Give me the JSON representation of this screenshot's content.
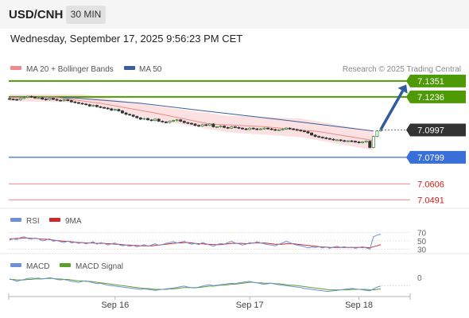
{
  "header": {
    "symbol": "USD/CNH",
    "timeframe": "30 MIN"
  },
  "datetime": "Wednesday, September 17, 2025 9:56:23 PM CET",
  "colors": {
    "ma20": "#f08a8a",
    "ma50": "#3a5f9c",
    "bollinger_fill": "#fbe1e1",
    "resistance": "#4e9a06",
    "support": "#3b6fd8",
    "pivot": "#333333",
    "weak_level": "#f0a0a0",
    "weak_level_text": "#d41c1c",
    "rsi": "#6f8fd8",
    "rsi_ma": "#cc2a2a",
    "macd": "#6f8fd8",
    "macd_signal": "#5aa02c",
    "arrow": "#2f5c9a"
  },
  "chart_data": [
    {
      "type": "candlestick",
      "legend": [
        {
          "label": "MA 20 + Bollinger Bands",
          "color": "#f08a8a"
        },
        {
          "label": "MA 50",
          "color": "#3a5f9c"
        }
      ],
      "legend_position": "top-left",
      "copyright": "Research © 2025 Trading Central",
      "ylim": [
        7.043,
        7.1385
      ],
      "x_range": [
        0,
        104
      ],
      "x_ticks": [
        {
          "label": "Sep 16",
          "x": 29
        },
        {
          "label": "Sep 17",
          "x": 66
        },
        {
          "label": "Sep 18",
          "x": 96
        }
      ],
      "levels": [
        {
          "label": "7.1351",
          "value": 7.1351,
          "kind": "resistance"
        },
        {
          "label": "7.1236",
          "value": 7.1236,
          "kind": "resistance"
        },
        {
          "label": "7.0997",
          "value": 7.0997,
          "kind": "pivot"
        },
        {
          "label": "7.0799",
          "value": 7.0799,
          "kind": "support"
        },
        {
          "label": "7.0606",
          "value": 7.0606,
          "kind": "weak"
        },
        {
          "label": "7.0491",
          "value": 7.0491,
          "kind": "weak"
        }
      ],
      "projection": {
        "from": {
          "x": 102,
          "y": 7.1
        },
        "to": {
          "x": 109,
          "y": 7.1325
        }
      },
      "ma50": [
        {
          "x": 0,
          "y": 7.1235
        },
        {
          "x": 18,
          "y": 7.1228
        },
        {
          "x": 36,
          "y": 7.119
        },
        {
          "x": 55,
          "y": 7.113
        },
        {
          "x": 75,
          "y": 7.107
        },
        {
          "x": 100,
          "y": 7.099
        }
      ],
      "ma20": [
        {
          "x": 0,
          "y": 7.123
        },
        {
          "x": 12,
          "y": 7.1235
        },
        {
          "x": 25,
          "y": 7.119
        },
        {
          "x": 40,
          "y": 7.112
        },
        {
          "x": 55,
          "y": 7.104
        },
        {
          "x": 70,
          "y": 7.102
        },
        {
          "x": 85,
          "y": 7.0985
        },
        {
          "x": 100,
          "y": 7.092
        }
      ],
      "bb_upper": [
        {
          "x": 0,
          "y": 7.1255
        },
        {
          "x": 20,
          "y": 7.1255
        },
        {
          "x": 40,
          "y": 7.117
        },
        {
          "x": 60,
          "y": 7.11
        },
        {
          "x": 80,
          "y": 7.108
        },
        {
          "x": 100,
          "y": 7.099
        }
      ],
      "bb_lower": [
        {
          "x": 0,
          "y": 7.1205
        },
        {
          "x": 20,
          "y": 7.1195
        },
        {
          "x": 40,
          "y": 7.107
        },
        {
          "x": 60,
          "y": 7.098
        },
        {
          "x": 80,
          "y": 7.0945
        },
        {
          "x": 100,
          "y": 7.085
        }
      ],
      "close": [
        7.122,
        7.1218,
        7.1215,
        7.1225,
        7.1232,
        7.124,
        7.1235,
        7.1228,
        7.123,
        7.122,
        7.1215,
        7.1225,
        7.1218,
        7.1212,
        7.1208,
        7.1215,
        7.121,
        7.12,
        7.1195,
        7.119,
        7.1185,
        7.118,
        7.117,
        7.1175,
        7.1165,
        7.116,
        7.1155,
        7.115,
        7.114,
        7.1145,
        7.1135,
        7.112,
        7.111,
        7.1105,
        7.1095,
        7.1085,
        7.1075,
        7.108,
        7.107,
        7.1065,
        7.1075,
        7.106,
        7.1055,
        7.105,
        7.106,
        7.1065,
        7.107,
        7.106,
        7.105,
        7.1045,
        7.104,
        7.103,
        7.1025,
        7.1035,
        7.103,
        7.104,
        7.102,
        7.102,
        7.1025,
        7.1015,
        7.101,
        7.102,
        7.1015,
        7.101,
        7.1005,
        7.1,
        7.101,
        7.1005,
        7.1,
        7.1005,
        7.101,
        7.1005,
        7.1,
        7.0995,
        7.0998,
        7.1002,
        7.101,
        7.1005,
        7.1,
        7.0995,
        7.099,
        7.0985,
        7.0975,
        7.096,
        7.095,
        7.0945,
        7.094,
        7.0935,
        7.093,
        7.0925,
        7.0925,
        7.092,
        7.0915,
        7.0918,
        7.0915,
        7.091,
        7.0905,
        7.091,
        7.0915,
        7.087,
        7.095,
        7.099,
        7.0997
      ]
    },
    {
      "type": "line",
      "legend": [
        {
          "label": "RSI",
          "color": "#6f8fd8"
        },
        {
          "label": "9MA",
          "color": "#cc2a2a"
        }
      ],
      "ylim": [
        25,
        75
      ],
      "y_ticks": [
        "70",
        "50",
        "30"
      ],
      "series": [
        {
          "name": "RSI",
          "values": [
            52,
            55,
            53,
            58,
            60,
            56,
            54,
            57,
            55,
            50,
            52,
            55,
            49,
            51,
            48,
            46,
            50,
            45,
            47,
            44,
            46,
            43,
            45,
            48,
            42,
            46,
            44,
            40,
            43,
            45,
            41,
            38,
            40,
            37,
            39,
            36,
            38,
            41,
            37,
            40,
            43,
            39,
            41,
            44,
            46,
            48,
            45,
            47,
            49,
            45,
            42,
            44,
            41,
            46,
            43,
            40,
            37,
            41,
            44,
            42,
            46,
            49,
            45,
            43,
            40,
            42,
            46,
            44,
            48,
            45,
            43,
            41,
            40,
            38,
            42,
            45,
            49,
            46,
            42,
            40,
            38,
            36,
            33,
            35,
            34,
            36,
            33,
            35,
            32,
            35,
            37,
            34,
            36,
            33,
            35,
            32,
            34,
            36,
            33,
            30,
            60,
            64,
            66
          ]
        },
        {
          "name": "9MA",
          "values": [
            55,
            55,
            56,
            56,
            57,
            57,
            56,
            56,
            55,
            54,
            54,
            53,
            52,
            51,
            50,
            49,
            49,
            48,
            47,
            46,
            46,
            45,
            45,
            45,
            44,
            44,
            44,
            43,
            43,
            42,
            42,
            41,
            40,
            40,
            39,
            39,
            38,
            38,
            38,
            38,
            39,
            40,
            41,
            42,
            43,
            44,
            45,
            45,
            46,
            46,
            45,
            44,
            43,
            43,
            42,
            42,
            41,
            41,
            41,
            42,
            43,
            44,
            44,
            44,
            44,
            43,
            44,
            45,
            45,
            45,
            45,
            44,
            43,
            42,
            42,
            42,
            43,
            43,
            43,
            42,
            41,
            40,
            39,
            38,
            37,
            36,
            35,
            35,
            34,
            34,
            34,
            34,
            34,
            34,
            34,
            34,
            34,
            34,
            34,
            33,
            36,
            38,
            41
          ]
        }
      ]
    },
    {
      "type": "line",
      "legend": [
        {
          "label": "MACD",
          "color": "#6f8fd8"
        },
        {
          "label": "MACD Signal",
          "color": "#5aa02c"
        }
      ],
      "ylim": [
        -0.0035,
        0.0012
      ],
      "y_ticks": [
        "0"
      ],
      "series": [
        {
          "name": "MACD",
          "values": [
            -0.0003,
            -0.0005,
            -0.0008,
            -0.0006,
            -0.0004,
            -0.0002,
            -0.0001,
            -0.0002,
            -0.0001,
            -0.0003,
            -0.0002,
            0.0,
            -0.0002,
            -0.0004,
            -0.0005,
            -0.0004,
            -0.0006,
            -0.0008,
            -0.0009,
            -0.001,
            -0.0008,
            -0.0007,
            -0.0009,
            -0.0011,
            -0.0013,
            -0.0012,
            -0.0014,
            -0.0016,
            -0.0017,
            -0.0018,
            -0.0019,
            -0.002,
            -0.0021,
            -0.0022,
            -0.0023,
            -0.0024,
            -0.0025,
            -0.0024,
            -0.0025,
            -0.0026,
            -0.0027,
            -0.0026,
            -0.0025,
            -0.0024,
            -0.0023,
            -0.0022,
            -0.0021,
            -0.0019,
            -0.0018,
            -0.002,
            -0.0021,
            -0.0022,
            -0.002,
            -0.0018,
            -0.0016,
            -0.0015,
            -0.0017,
            -0.0016,
            -0.0015,
            -0.0014,
            -0.0013,
            -0.0012,
            -0.0013,
            -0.0011,
            -0.001,
            -0.0009,
            -0.0008,
            -0.001,
            -0.0011,
            -0.0013,
            -0.0014,
            -0.0013,
            -0.0012,
            -0.0014,
            -0.0015,
            -0.0016,
            -0.0017,
            -0.0018,
            -0.0019,
            -0.002,
            -0.0021,
            -0.0023,
            -0.0024,
            -0.0025,
            -0.0026,
            -0.0027,
            -0.0028,
            -0.0029,
            -0.0029,
            -0.0028,
            -0.0027,
            -0.0026,
            -0.0025,
            -0.0024,
            -0.0023,
            -0.0024,
            -0.0025,
            -0.0026,
            -0.0027,
            -0.0028,
            -0.0024,
            -0.002,
            -0.0018
          ]
        },
        {
          "name": "MACD Signal",
          "values": [
            -0.0004,
            -0.0004,
            -0.0005,
            -0.0005,
            -0.0005,
            -0.0004,
            -0.0004,
            -0.0003,
            -0.0003,
            -0.0003,
            -0.0002,
            -0.0002,
            -0.0002,
            -0.0003,
            -0.0003,
            -0.0004,
            -0.0004,
            -0.0005,
            -0.0006,
            -0.0007,
            -0.0007,
            -0.0008,
            -0.0008,
            -0.0009,
            -0.001,
            -0.0011,
            -0.0012,
            -0.0013,
            -0.0014,
            -0.0015,
            -0.0016,
            -0.0017,
            -0.0018,
            -0.0019,
            -0.002,
            -0.0021,
            -0.0022,
            -0.0023,
            -0.0023,
            -0.0024,
            -0.0025,
            -0.0025,
            -0.0025,
            -0.0025,
            -0.0024,
            -0.0024,
            -0.0023,
            -0.0022,
            -0.0021,
            -0.0021,
            -0.0021,
            -0.0021,
            -0.0021,
            -0.002,
            -0.0019,
            -0.0018,
            -0.0018,
            -0.0017,
            -0.0016,
            -0.0016,
            -0.0015,
            -0.0014,
            -0.0014,
            -0.0013,
            -0.0012,
            -0.0011,
            -0.001,
            -0.001,
            -0.0011,
            -0.0011,
            -0.0012,
            -0.0012,
            -0.0012,
            -0.0013,
            -0.0013,
            -0.0014,
            -0.0015,
            -0.0016,
            -0.0016,
            -0.0017,
            -0.0018,
            -0.0019,
            -0.002,
            -0.0021,
            -0.0022,
            -0.0023,
            -0.0024,
            -0.0025,
            -0.0026,
            -0.0026,
            -0.0026,
            -0.0026,
            -0.0026,
            -0.0026,
            -0.0025,
            -0.0025,
            -0.0025,
            -0.0025,
            -0.0025,
            -0.0026,
            -0.0026,
            -0.0025,
            -0.0024
          ]
        }
      ]
    }
  ]
}
